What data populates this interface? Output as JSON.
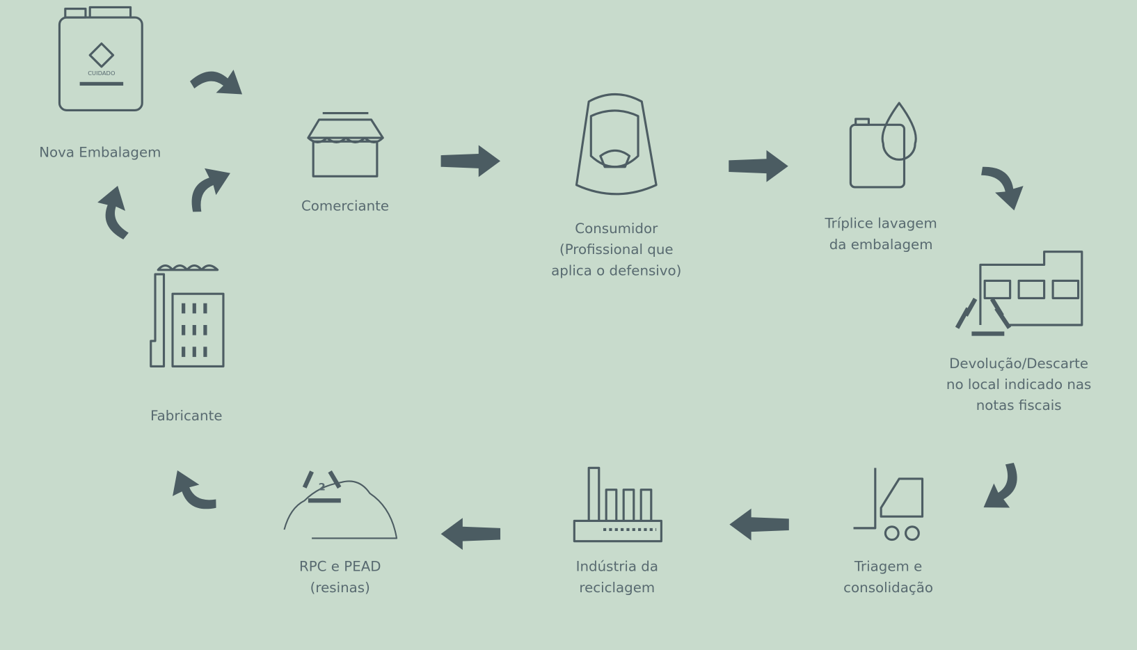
{
  "nodes": [
    {
      "lines": [
        "Nova Embalagem"
      ],
      "icon_text": "CUIDADO"
    },
    {
      "lines": [
        "Comerciante"
      ]
    },
    {
      "lines": [
        "Consumidor",
        "(Profissional que",
        "aplica o defensivo)"
      ]
    },
    {
      "lines": [
        "Tríplice lavagem",
        "da embalagem"
      ]
    },
    {
      "lines": [
        "Devolução/Descarte",
        "no local indicado nas",
        "notas fiscais"
      ]
    },
    {
      "lines": [
        "Triagem e",
        "consolidação"
      ]
    },
    {
      "lines": [
        "Indústria da",
        "reciclagem"
      ]
    },
    {
      "lines": [
        "RPC e PEAD",
        "(resinas)"
      ],
      "icon_text": "2"
    },
    {
      "lines": [
        "Fabricante"
      ]
    }
  ]
}
